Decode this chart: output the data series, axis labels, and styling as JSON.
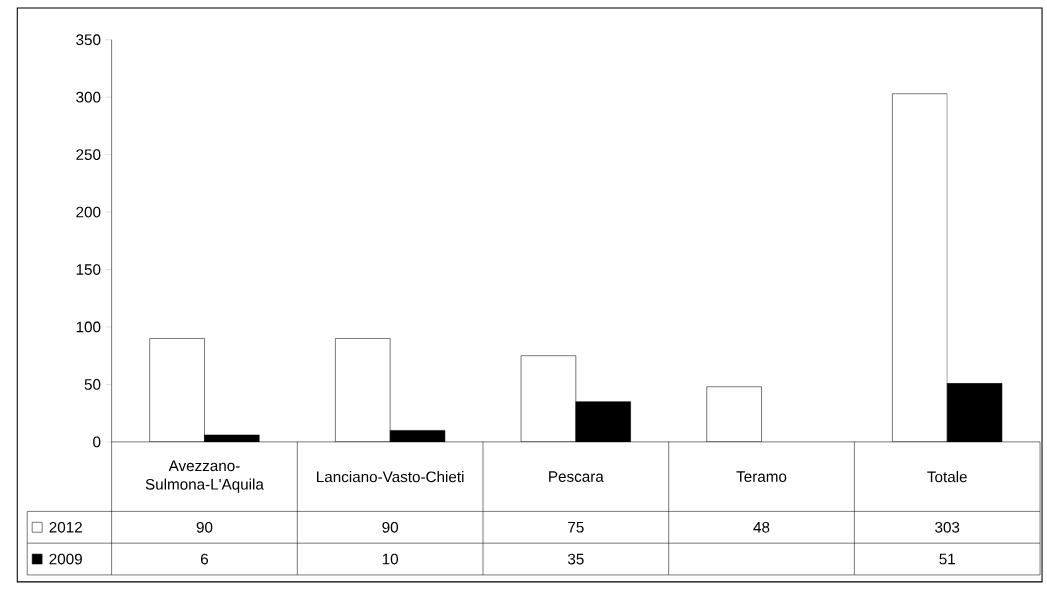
{
  "chart_data": {
    "type": "bar",
    "categories": [
      "Avezzano-Sulmona-L'Aquila",
      "Lanciano-Vasto-Chieti",
      "Pescara",
      "Teramo",
      "Totale"
    ],
    "series": [
      {
        "name": "2012",
        "color": "#ffffff",
        "values": [
          90,
          90,
          75,
          48,
          303
        ]
      },
      {
        "name": "2009",
        "color": "#000000",
        "values": [
          6,
          10,
          35,
          null,
          51
        ]
      }
    ],
    "ylim": [
      0,
      350
    ],
    "yticks": [
      0,
      50,
      100,
      150,
      200,
      250,
      300,
      350
    ],
    "data_labels": true,
    "legend": "bottom left"
  }
}
